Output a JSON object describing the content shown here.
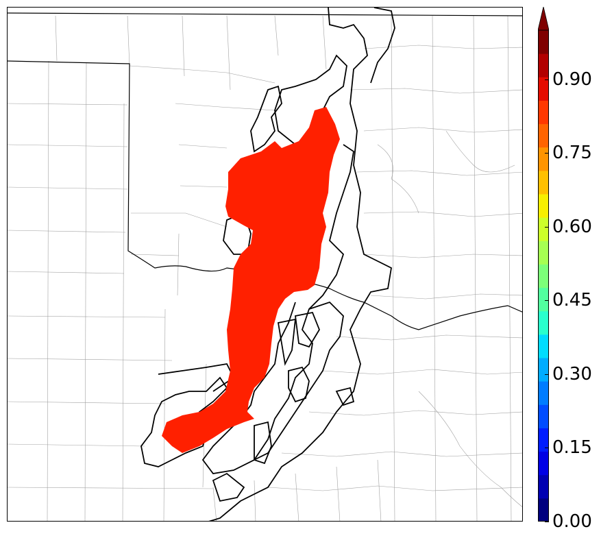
{
  "colorbar": {
    "colors": [
      "#00007f",
      "#0000b2",
      "#0000e5",
      "#001cff",
      "#004cff",
      "#007cff",
      "#00acff",
      "#00dcfe",
      "#29ffcd",
      "#52ff9f",
      "#7cff79",
      "#a6ff52",
      "#cdff29",
      "#f7ef00",
      "#ffc000",
      "#ff9400",
      "#ff6400",
      "#ff3800",
      "#e50c00",
      "#b20000",
      "#7f0000"
    ],
    "extend_color": "#7f0000",
    "ticks": [
      {
        "label": "0.90",
        "value": 0.9
      },
      {
        "label": "0.75",
        "value": 0.75
      },
      {
        "label": "0.60",
        "value": 0.6
      },
      {
        "label": "0.45",
        "value": 0.45
      },
      {
        "label": "0.30",
        "value": 0.3
      },
      {
        "label": "0.15",
        "value": 0.15
      },
      {
        "label": "0.00",
        "value": 0.0
      }
    ],
    "range": [
      0,
      1.0
    ]
  },
  "map": {
    "fill_color": "#ff2000",
    "contour_color": "#000000",
    "county_line_color": "#9a9a9a",
    "state_line_color": "#000000"
  }
}
